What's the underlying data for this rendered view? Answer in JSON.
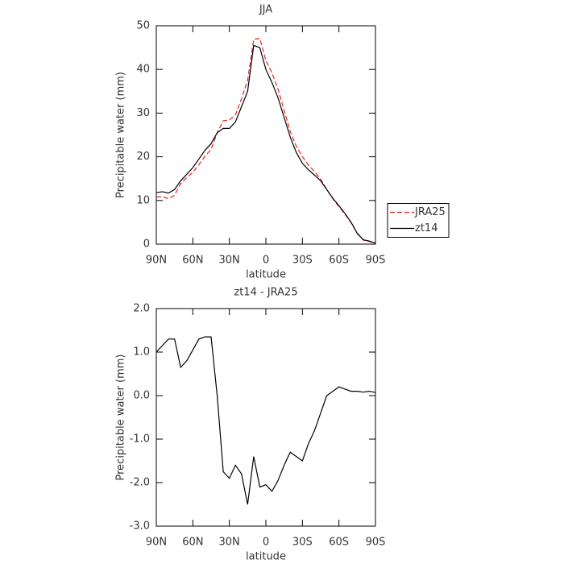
{
  "chart_data": [
    {
      "type": "line",
      "title": "JJA",
      "xlabel": "latitude",
      "ylabel": "Precipitable water (mm)",
      "x": [
        90,
        85,
        80,
        75,
        70,
        65,
        60,
        55,
        50,
        45,
        40,
        35,
        30,
        25,
        20,
        15,
        10,
        5,
        0,
        -5,
        -10,
        -15,
        -20,
        -25,
        -30,
        -35,
        -40,
        -45,
        -50,
        -55,
        -60,
        -65,
        -70,
        -75,
        -80,
        -85,
        -90
      ],
      "series": [
        {
          "name": "JRA25",
          "color": "#e8231e",
          "dash": true,
          "values": [
            10.8,
            10.85,
            10.4,
            11.2,
            13.85,
            15.2,
            16.45,
            18.2,
            20.15,
            21.65,
            25.5,
            28.25,
            28.4,
            29.6,
            33.3,
            37.5,
            46.9,
            47.1,
            42.05,
            39.2,
            35.45,
            30.6,
            25.8,
            22.4,
            20,
            18.1,
            16.6,
            14.9,
            12.5,
            10.4,
            8.6,
            6.85,
            4.9,
            2.4,
            0.92,
            0.6,
            0.13
          ]
        },
        {
          "name": "zt14",
          "color": "#000000",
          "dash": false,
          "values": [
            11.8,
            12.0,
            11.7,
            12.5,
            14.5,
            16,
            17.5,
            19.5,
            21.5,
            23,
            25.5,
            26.5,
            26.5,
            28,
            31.5,
            35,
            45.5,
            45,
            40,
            37,
            33.5,
            29,
            24.5,
            21,
            18.5,
            17,
            15.8,
            14.5,
            12.5,
            10.5,
            8.8,
            7,
            5,
            2.5,
            1,
            0.7,
            0.2
          ]
        }
      ],
      "xlim": [
        90,
        -90
      ],
      "xticks": [
        {
          "value": 90,
          "label": "90N"
        },
        {
          "value": 60,
          "label": "60N"
        },
        {
          "value": 30,
          "label": "30N"
        },
        0,
        {
          "value": -30,
          "label": "30S"
        },
        {
          "value": -60,
          "label": "60S"
        },
        {
          "value": -90,
          "label": "90S"
        }
      ],
      "ylim": [
        0,
        50
      ],
      "yticks": [
        0,
        10,
        20,
        30,
        40,
        50
      ],
      "legend": "right"
    },
    {
      "type": "line",
      "title": "zt14 - JRA25",
      "xlabel": "latitude",
      "ylabel": "Precipitable water (mm)",
      "x": [
        90,
        85,
        80,
        75,
        70,
        65,
        60,
        55,
        50,
        45,
        40,
        35,
        30,
        25,
        20,
        15,
        10,
        5,
        0,
        -5,
        -10,
        -15,
        -20,
        -25,
        -30,
        -35,
        -40,
        -45,
        -50,
        -55,
        -60,
        -65,
        -70,
        -75,
        -80,
        -85,
        -90
      ],
      "values": [
        1.0,
        1.15,
        1.3,
        1.3,
        0.65,
        0.8,
        1.05,
        1.3,
        1.35,
        1.35,
        0.0,
        -1.75,
        -1.9,
        -1.6,
        -1.8,
        -2.5,
        -1.4,
        -2.1,
        -2.05,
        -2.2,
        -1.95,
        -1.6,
        -1.3,
        -1.4,
        -1.5,
        -1.1,
        -0.8,
        -0.4,
        0.0,
        0.1,
        0.2,
        0.15,
        0.1,
        0.1,
        0.08,
        0.1,
        0.07
      ],
      "color": "#000000",
      "xlim": [
        90,
        -90
      ],
      "xticks": [
        {
          "value": 90,
          "label": "90N"
        },
        {
          "value": 60,
          "label": "60N"
        },
        {
          "value": 30,
          "label": "30N"
        },
        0,
        {
          "value": -30,
          "label": "30S"
        },
        {
          "value": -60,
          "label": "60S"
        },
        {
          "value": -90,
          "label": "90S"
        }
      ],
      "ylim": [
        -3,
        2
      ],
      "yticks": [
        {
          "value": 2,
          "label": "2.0"
        },
        {
          "value": 1,
          "label": "1.0"
        },
        {
          "value": 0,
          "label": "0.0"
        },
        {
          "value": -1,
          "label": "-1.0"
        },
        {
          "value": -2,
          "label": "-2.0"
        },
        {
          "value": -3,
          "label": "-3.0"
        }
      ]
    }
  ]
}
